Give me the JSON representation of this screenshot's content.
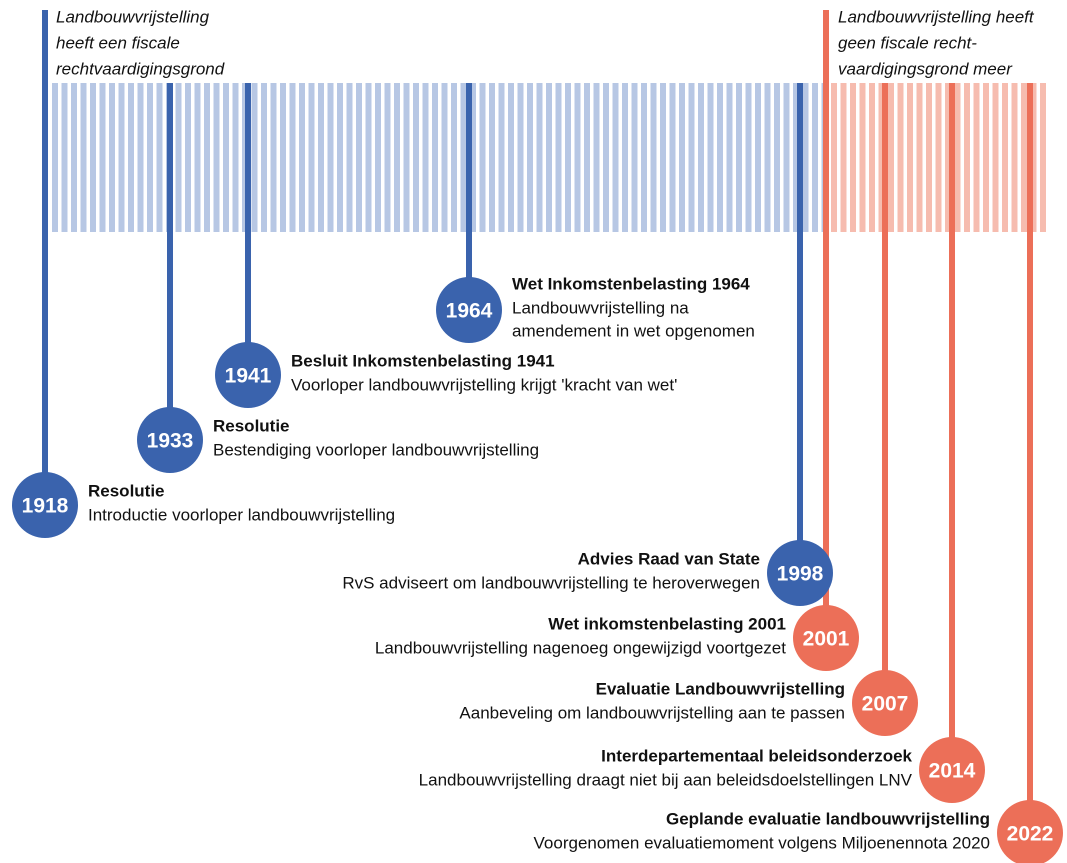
{
  "annotations": {
    "left": [
      "Landbouwvrijstelling",
      "heeft een fiscale",
      "rechtvaardigingsgrond"
    ],
    "right": [
      "Landbouwvrijstelling heeft",
      "geen fiscale recht-",
      "vaardigingsgrond meer"
    ]
  },
  "events": [
    {
      "year": "1918",
      "title": "Resolutie",
      "description": [
        "Introductie voorloper landbouwvrijstelling"
      ]
    },
    {
      "year": "1933",
      "title": "Resolutie",
      "description": [
        "Bestendiging voorloper landbouwvrijstelling"
      ]
    },
    {
      "year": "1941",
      "title": "Besluit Inkomstenbelasting 1941",
      "description": [
        "Voorloper landbouwvrijstelling krijgt 'kracht van wet'"
      ]
    },
    {
      "year": "1964",
      "title": "Wet Inkomstenbelasting 1964",
      "description": [
        "Landbouwvrijstelling na",
        "amendement in wet opgenomen"
      ]
    },
    {
      "year": "1998",
      "title": "Advies Raad van State",
      "description": [
        "RvS adviseert om landbouwvrijstelling te heroverwegen"
      ]
    },
    {
      "year": "2001",
      "title": "Wet inkomstenbelasting 2001",
      "description": [
        "Landbouwvrijstelling nagenoeg ongewijzigd voortgezet"
      ]
    },
    {
      "year": "2007",
      "title": "Evaluatie Landbouwvrijstelling",
      "description": [
        "Aanbeveling om landbouwvrijstelling aan te passen"
      ]
    },
    {
      "year": "2014",
      "title": "Interdepartementaal beleidsonderzoek",
      "description": [
        "Landbouwvrijstelling draagt niet bij aan beleidsdoelstellingen LNV"
      ]
    },
    {
      "year": "2022",
      "title": "Geplande evaluatie landbouwvrijstelling",
      "description": [
        "Voorgenomen evaluatiemoment volgens Miljoenennota 2020"
      ]
    }
  ]
}
